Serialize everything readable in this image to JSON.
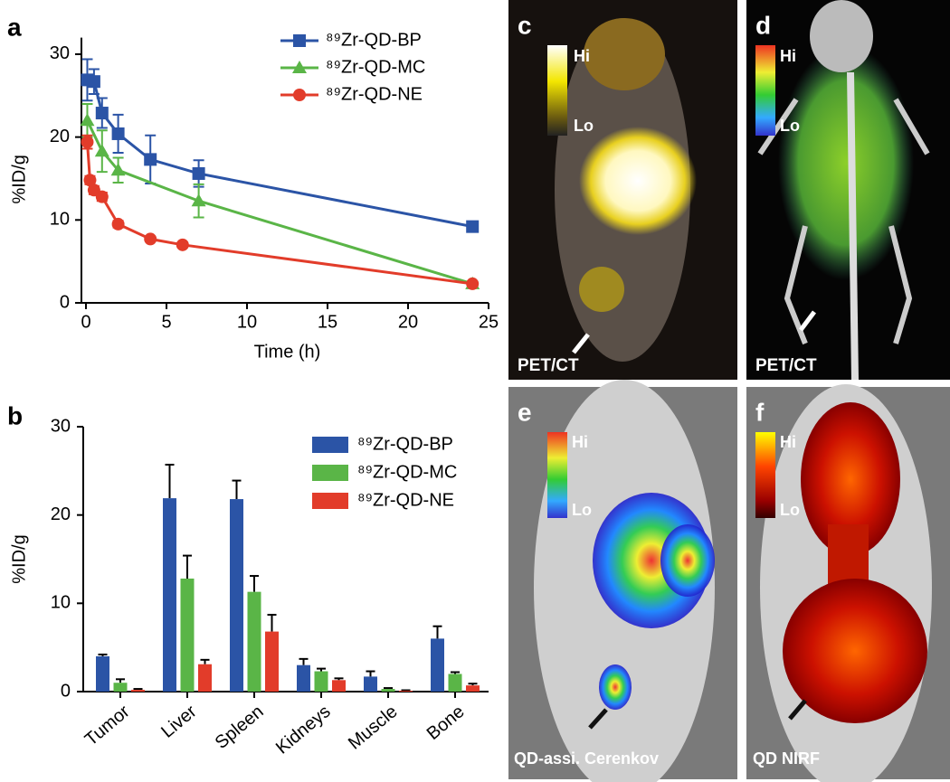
{
  "chart_data": [
    {
      "type": "line",
      "label": "a",
      "x_label": "Time (h)",
      "y_label": "%ID/g",
      "xlim": [
        0,
        25
      ],
      "ylim": [
        0,
        32
      ],
      "xticks": [
        0,
        5,
        10,
        15,
        20,
        25
      ],
      "yticks": [
        0,
        10,
        20,
        30
      ],
      "series": [
        {
          "name": "⁸⁹Zr-QD-BP",
          "color": "#2b54a6",
          "marker": "square",
          "x": [
            0.083,
            0.5,
            1,
            2,
            4,
            7,
            24
          ],
          "values": [
            26.9,
            26.7,
            22.9,
            20.4,
            17.3,
            15.6,
            9.2
          ],
          "errors": [
            2.5,
            1.5,
            1.8,
            2.3,
            2.9,
            1.6,
            0.4
          ]
        },
        {
          "name": "⁸⁹Zr-QD-MC",
          "color": "#5ab547",
          "marker": "triangle",
          "x": [
            0.083,
            1,
            2,
            7,
            24
          ],
          "values": [
            22.0,
            18.3,
            16.0,
            12.3,
            2.3
          ],
          "errors": [
            2.0,
            2.5,
            1.5,
            2.0,
            0.3
          ]
        },
        {
          "name": "⁸⁹Zr-QD-NE",
          "color": "#e23c2a",
          "marker": "circle",
          "x": [
            0.083,
            0.25,
            0.5,
            1,
            2,
            4,
            6,
            24
          ],
          "values": [
            19.4,
            14.8,
            13.6,
            12.8,
            9.5,
            7.7,
            7.0,
            2.3
          ],
          "errors": [
            0.8,
            0.5,
            0.5,
            0.5,
            0.4,
            0.3,
            0.3,
            0.2
          ]
        }
      ]
    },
    {
      "type": "bar",
      "label": "b",
      "y_label": "%ID/g",
      "ylim": [
        0,
        30
      ],
      "yticks": [
        0,
        10,
        20,
        30
      ],
      "categories": [
        "Tumor",
        "Liver",
        "Spleen",
        "Kidneys",
        "Muscle",
        "Bone"
      ],
      "series": [
        {
          "name": "⁸⁹Zr-QD-BP",
          "color": "#2b54a6",
          "values": [
            4.0,
            21.9,
            21.8,
            3.0,
            1.7,
            6.0
          ],
          "errors": [
            0.2,
            3.8,
            2.1,
            0.7,
            0.6,
            1.4
          ]
        },
        {
          "name": "⁸⁹Zr-QD-MC",
          "color": "#5ab547",
          "values": [
            1.0,
            12.8,
            11.3,
            2.3,
            0.3,
            2.0
          ],
          "errors": [
            0.4,
            2.6,
            1.8,
            0.3,
            0.1,
            0.2
          ]
        },
        {
          "name": "⁸⁹Zr-QD-NE",
          "color": "#e23c2a",
          "values": [
            0.2,
            3.1,
            6.8,
            1.3,
            0.1,
            0.7
          ],
          "errors": [
            0.1,
            0.5,
            1.9,
            0.2,
            0.05,
            0.2
          ]
        }
      ]
    }
  ],
  "panels": [
    {
      "label": "c",
      "caption": "PET/CT",
      "hi": "Hi",
      "lo": "Lo"
    },
    {
      "label": "d",
      "caption": "PET/CT",
      "hi": "Hi",
      "lo": "Lo"
    },
    {
      "label": "e",
      "caption": "QD-assi. Cerenkov",
      "hi": "Hi",
      "lo": "Lo"
    },
    {
      "label": "f",
      "caption": "QD NIRF",
      "hi": "Hi",
      "lo": "Lo"
    }
  ]
}
